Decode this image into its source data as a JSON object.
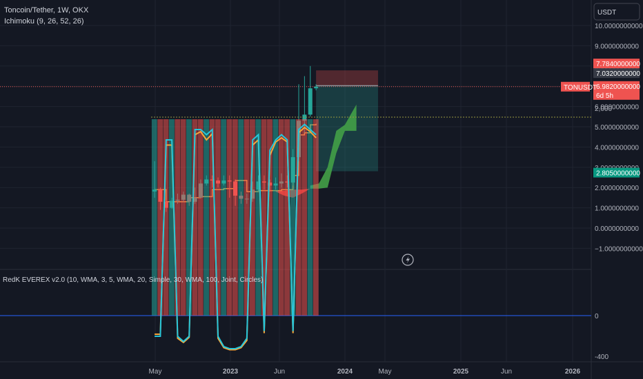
{
  "header": {
    "symbol_title": "Toncoin/Tether, 1W, OKX",
    "indicator_title": "Ichimoku (9, 26, 52, 26)",
    "oscillator_title": "RedK EVEREX v2.0 (10, WMA, 3, 5, WMA, 20, Simple, 30, WMA, 100, Joint, Circles)"
  },
  "currency_button": "USDT",
  "price_axis": {
    "ticks": [
      "10.0000000000",
      "9.0000000000",
      "8.0000000000",
      "7.0000000000",
      "6.0000000000",
      "5.0000000000",
      "4.0000000000",
      "3.0000000000",
      "2.0000000000",
      "1.0000000000",
      "0.0000000000",
      "−1.0000000000"
    ],
    "ylim": [
      -1.5,
      10.2
    ]
  },
  "price_tags": {
    "target": "7.7840000000",
    "entry": "7.0320000000",
    "current": "6.9820000000",
    "countdown": "6d 5h",
    "symbol_tag": "TONUSDT",
    "stop": "2.8050000000"
  },
  "osc_axis": {
    "ticks": [
      "2,000",
      "0",
      "-400"
    ]
  },
  "time_axis": {
    "ticks": [
      "May",
      "2023",
      "Jun",
      "2024",
      "May",
      "2025",
      "Jun",
      "2026"
    ]
  },
  "colors": {
    "background": "#141823",
    "up": "#26a69a",
    "down": "#ef5350",
    "kijun": "#f7a73a",
    "cloud_bull": "#43a047",
    "cloud_bear": "#e53935",
    "grid": "#1f2430",
    "axis_text": "#b2b5be",
    "zero_line": "#2962ff"
  },
  "chart_data": {
    "type": "candlestick",
    "x": [
      "2022-04-18",
      "2022-05-16",
      "2022-06-13",
      "2022-07-11",
      "2022-08-08",
      "2022-09-05",
      "2022-10-03",
      "2022-10-31",
      "2022-11-28",
      "2022-12-26",
      "2023-01-23",
      "2023-02-20",
      "2023-03-20",
      "2023-04-17",
      "2023-05-15",
      "2023-06-12",
      "2023-07-10",
      "2023-08-07",
      "2023-09-04",
      "2023-10-02",
      "2023-10-30",
      "2023-11-27",
      "2023-12-25",
      "2024-01-22",
      "2024-02-19",
      "2024-03-18",
      "2024-04-15",
      "2024-05-13",
      "2024-06-10"
    ],
    "close": [
      1.9,
      1.3,
      1.0,
      1.35,
      1.4,
      1.65,
      1.3,
      1.5,
      2.2,
      2.4,
      2.35,
      2.2,
      2.35,
      2.3,
      1.6,
      1.45,
      1.45,
      1.9,
      2.3,
      2.25,
      2.1,
      2.2,
      2.3,
      2.25,
      3.5,
      5.3,
      5.6,
      6.9,
      6.98
    ],
    "high": [
      3.3,
      2.0,
      1.4,
      1.5,
      1.7,
      1.8,
      1.7,
      2.0,
      2.4,
      2.6,
      2.6,
      2.5,
      2.6,
      2.6,
      2.4,
      1.8,
      1.7,
      2.3,
      2.6,
      2.6,
      2.4,
      2.5,
      2.7,
      2.6,
      3.9,
      7.1,
      7.5,
      8.0,
      7.1
    ],
    "low": [
      1.5,
      0.9,
      0.8,
      0.95,
      1.2,
      1.3,
      1.1,
      1.2,
      1.5,
      2.1,
      2.0,
      2.0,
      2.1,
      1.5,
      1.1,
      1.2,
      1.2,
      1.3,
      1.8,
      1.9,
      1.8,
      1.9,
      2.0,
      2.0,
      2.1,
      3.3,
      4.7,
      5.5,
      6.8
    ],
    "kijun": {
      "x": [
        "2022-04-18",
        "2022-06-13",
        "2022-08-08",
        "2022-10-03",
        "2022-11-28",
        "2023-01-23",
        "2023-03-20",
        "2023-05-15",
        "2023-07-10",
        "2023-09-04",
        "2023-10-30",
        "2023-12-25",
        "2024-02-19",
        "2024-03-18",
        "2024-04-15",
        "2024-05-13",
        "2024-06-10"
      ],
      "y": [
        1.9,
        1.3,
        1.3,
        1.5,
        1.55,
        1.9,
        1.95,
        2.35,
        1.8,
        1.85,
        1.85,
        1.9,
        2.6,
        4.6,
        4.7,
        5.1,
        5.15
      ]
    },
    "cloud_bull": {
      "x": [
        "2024-05-13",
        "2024-06-24",
        "2024-08-05",
        "2024-09-16",
        "2024-10-28",
        "2024-11-25",
        "2024-12-23"
      ],
      "top": [
        2.1,
        2.2,
        3.0,
        4.8,
        5.1,
        5.6,
        6.1
      ],
      "bottom": [
        1.95,
        1.95,
        2.0,
        3.7,
        4.8,
        4.8,
        4.8
      ]
    },
    "cloud_bear": {
      "x": [
        "2023-11-27",
        "2024-01-08",
        "2024-02-19",
        "2024-04-01",
        "2024-05-13"
      ],
      "top": [
        1.85,
        1.85,
        1.9,
        1.9,
        1.95
      ],
      "bottom": [
        1.8,
        1.6,
        1.5,
        1.7,
        1.95
      ]
    },
    "position": {
      "x_start": "2024-06-10",
      "x_end": "2025-04-07",
      "entry": 7.032,
      "target": 7.784,
      "stop": 2.805
    },
    "oscillator": {
      "ylim": [
        -400,
        2000
      ],
      "bars": [
        1900,
        1900,
        1900,
        1900,
        1900,
        1900,
        1900,
        1900,
        1900,
        1900,
        1900,
        1900,
        1900,
        1900,
        1900,
        1900,
        1900,
        1900,
        1900,
        1900,
        1900,
        1900,
        1900,
        1900,
        1900,
        1900,
        1900,
        1900,
        1900
      ],
      "line_fast": [
        -200,
        -200,
        1700,
        1700,
        -200,
        -250,
        -200,
        1800,
        1800,
        1750,
        1800,
        -200,
        -300,
        -320,
        -320,
        -300,
        -220,
        1700,
        1750,
        -150,
        1600,
        1700,
        1750,
        1700,
        -150,
        1800,
        1850,
        1800,
        1750
      ],
      "line_slow": [
        -180,
        -180,
        1650,
        1650,
        -220,
        -260,
        -210,
        1750,
        1780,
        1700,
        1760,
        -220,
        -310,
        -330,
        -330,
        -310,
        -240,
        1650,
        1700,
        -170,
        1550,
        1680,
        1720,
        1680,
        -170,
        1770,
        1820,
        1780,
        1720
      ]
    }
  },
  "icons": {
    "replay": "lightning-bolt-icon"
  }
}
